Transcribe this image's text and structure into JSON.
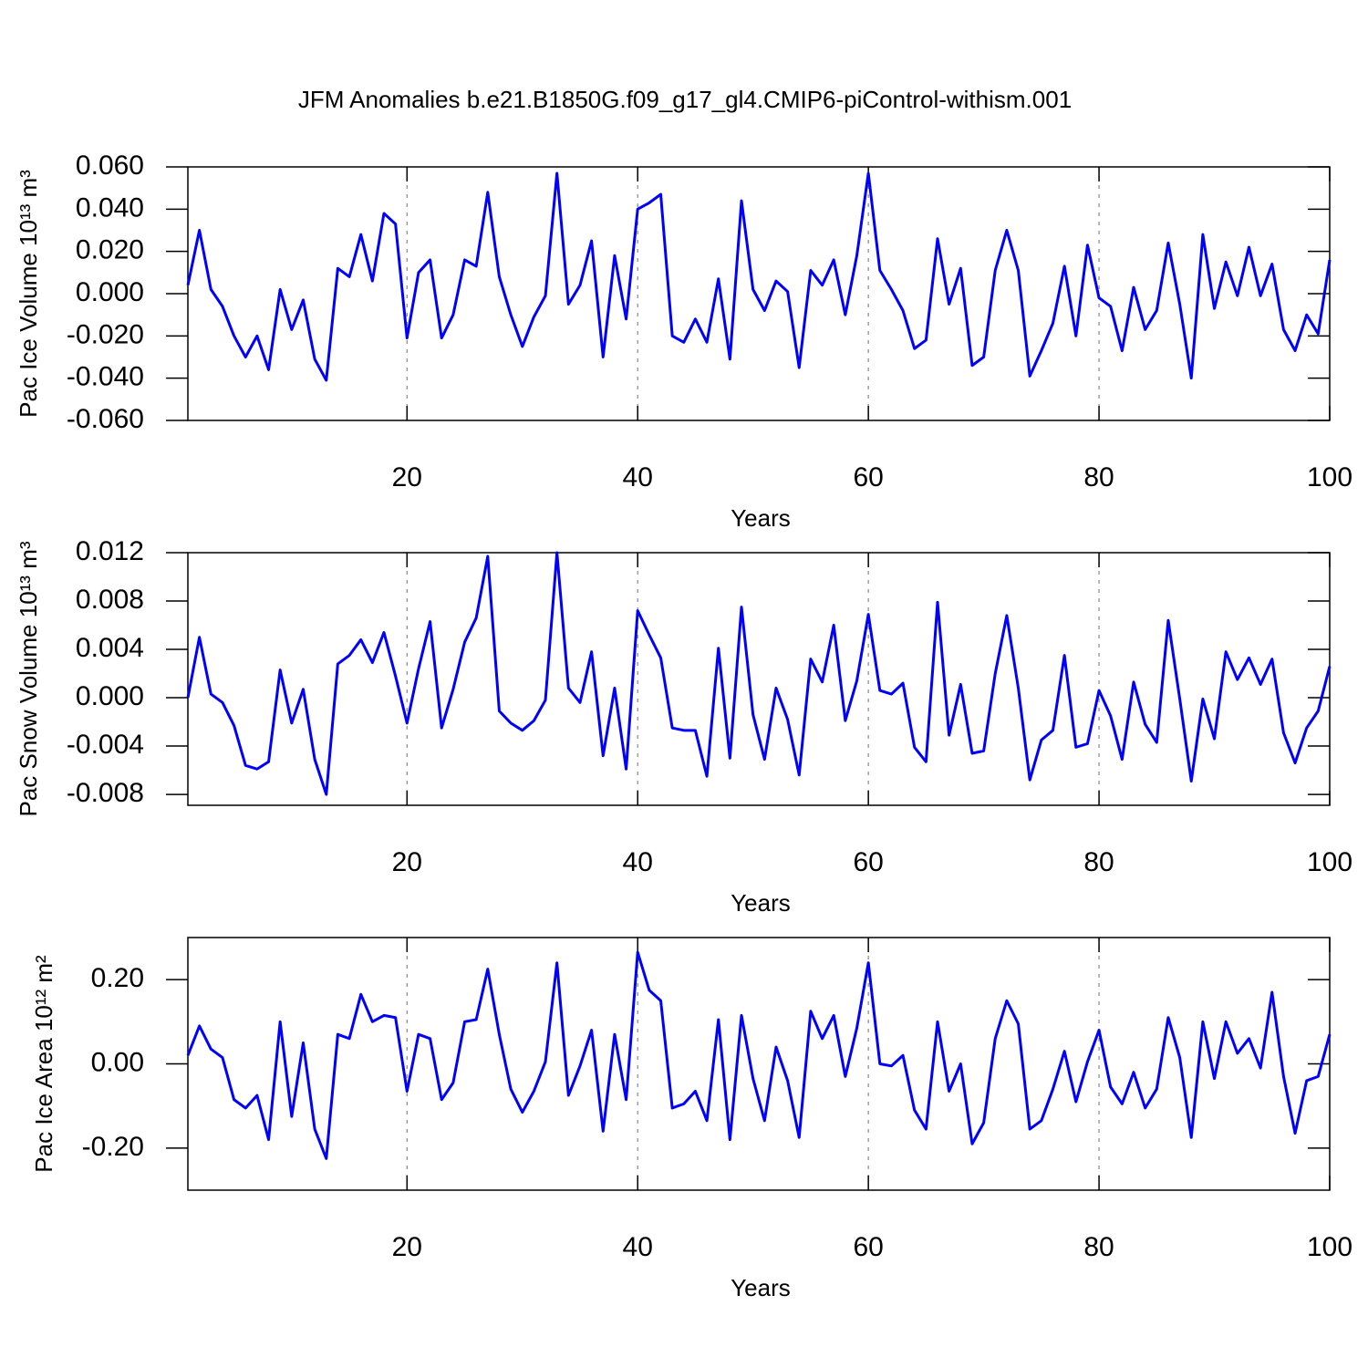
{
  "title": "JFM Anomalies b.e21.B1850G.f09_g17_gl4.CMIP6-piControl-withism.001",
  "chart_data": [
    {
      "type": "line",
      "ylabel": "Pac Ice Volume 10¹³ m³",
      "xlabel": "Years",
      "color": "#0000ff",
      "xgrid": true,
      "xlim": [
        1,
        100
      ],
      "xticks": [
        20,
        40,
        60,
        80,
        100
      ],
      "ylim": [
        -0.06,
        0.06
      ],
      "yticks": [
        {
          "value": -0.06,
          "label": "-0.060"
        },
        {
          "value": -0.04,
          "label": "-0.040"
        },
        {
          "value": -0.02,
          "label": "-0.020"
        },
        {
          "value": 0,
          "label": "0.000"
        },
        {
          "value": 0.02,
          "label": "0.020"
        },
        {
          "value": 0.04,
          "label": "0.040"
        },
        {
          "value": 0.06,
          "label": "0.060"
        }
      ],
      "x": [
        1,
        2,
        3,
        4,
        5,
        6,
        7,
        8,
        9,
        10,
        11,
        12,
        13,
        14,
        15,
        16,
        17,
        18,
        19,
        20,
        21,
        22,
        23,
        24,
        25,
        26,
        27,
        28,
        29,
        30,
        31,
        32,
        33,
        34,
        35,
        36,
        37,
        38,
        39,
        40,
        41,
        42,
        43,
        44,
        45,
        46,
        47,
        48,
        49,
        50,
        51,
        52,
        53,
        54,
        55,
        56,
        57,
        58,
        59,
        60,
        61,
        62,
        63,
        64,
        65,
        66,
        67,
        68,
        69,
        70,
        71,
        72,
        73,
        74,
        75,
        76,
        77,
        78,
        79,
        80,
        81,
        82,
        83,
        84,
        85,
        86,
        87,
        88,
        89,
        90,
        91,
        92,
        93,
        94,
        95,
        96,
        97,
        98,
        99,
        100
      ],
      "values": [
        0.004,
        0.03,
        0.002,
        -0.006,
        -0.02,
        -0.03,
        -0.02,
        -0.036,
        0.002,
        -0.017,
        -0.003,
        -0.031,
        -0.041,
        0.012,
        0.008,
        0.028,
        0.006,
        0.038,
        0.033,
        -0.021,
        0.01,
        0.016,
        -0.021,
        -0.01,
        0.016,
        0.013,
        0.048,
        0.008,
        -0.01,
        -0.025,
        -0.011,
        -0.001,
        0.057,
        -0.005,
        0.004,
        0.025,
        -0.03,
        0.018,
        -0.012,
        0.04,
        0.043,
        0.047,
        -0.02,
        -0.023,
        -0.012,
        -0.023,
        0.007,
        -0.031,
        0.044,
        0.002,
        -0.008,
        0.006,
        0.001,
        -0.035,
        0.011,
        0.004,
        0.016,
        -0.01,
        0.018,
        0.057,
        0.011,
        0.002,
        -0.008,
        -0.026,
        -0.022,
        0.026,
        -0.005,
        0.012,
        -0.034,
        -0.03,
        0.011,
        0.03,
        0.011,
        -0.039,
        -0.027,
        -0.014,
        0.013,
        -0.02,
        0.023,
        -0.002,
        -0.006,
        -0.027,
        0.003,
        -0.017,
        -0.008,
        0.024,
        -0.005,
        -0.04,
        0.028,
        -0.007,
        0.015,
        -0.001,
        0.022,
        -0.001,
        0.014,
        -0.017,
        -0.027,
        -0.01,
        -0.019,
        0.016
      ]
    },
    {
      "type": "line",
      "ylabel": "Pac Snow Volume 10¹³ m³",
      "xlabel": "Years",
      "color": "#0000ff",
      "xgrid": true,
      "xlim": [
        1,
        100
      ],
      "xticks": [
        20,
        40,
        60,
        80,
        100
      ],
      "ylim": [
        -0.0089,
        0.012
      ],
      "yticks": [
        {
          "value": -0.008,
          "label": "-0.008"
        },
        {
          "value": -0.004,
          "label": "-0.004"
        },
        {
          "value": 0,
          "label": "0.000"
        },
        {
          "value": 0.004,
          "label": "0.004"
        },
        {
          "value": 0.008,
          "label": "0.008"
        },
        {
          "value": 0.012,
          "label": "0.012"
        }
      ],
      "x": [
        1,
        2,
        3,
        4,
        5,
        6,
        7,
        8,
        9,
        10,
        11,
        12,
        13,
        14,
        15,
        16,
        17,
        18,
        19,
        20,
        21,
        22,
        23,
        24,
        25,
        26,
        27,
        28,
        29,
        30,
        31,
        32,
        33,
        34,
        35,
        36,
        37,
        38,
        39,
        40,
        41,
        42,
        43,
        44,
        45,
        46,
        47,
        48,
        49,
        50,
        51,
        52,
        53,
        54,
        55,
        56,
        57,
        58,
        59,
        60,
        61,
        62,
        63,
        64,
        65,
        66,
        67,
        68,
        69,
        70,
        71,
        72,
        73,
        74,
        75,
        76,
        77,
        78,
        79,
        80,
        81,
        82,
        83,
        84,
        85,
        86,
        87,
        88,
        89,
        90,
        91,
        92,
        93,
        94,
        95,
        96,
        97,
        98,
        99,
        100
      ],
      "values": [
        0.0,
        0.005,
        0.0003,
        -0.0004,
        -0.0023,
        -0.0056,
        -0.0059,
        -0.0053,
        0.0023,
        -0.0021,
        0.0007,
        -0.0051,
        -0.008,
        0.0028,
        0.0035,
        0.0048,
        0.0029,
        0.0054,
        0.0018,
        -0.0021,
        0.0024,
        0.0063,
        -0.0025,
        0.0007,
        0.0046,
        0.0066,
        0.0117,
        -0.0011,
        -0.0021,
        -0.0027,
        -0.0019,
        -0.0002,
        0.012,
        0.0008,
        -0.0004,
        0.0038,
        -0.0048,
        0.0008,
        -0.0059,
        0.0072,
        0.0052,
        0.0033,
        -0.0025,
        -0.0027,
        -0.0027,
        -0.0065,
        0.0041,
        -0.005,
        0.0075,
        -0.0014,
        -0.0051,
        0.0008,
        -0.0018,
        -0.0064,
        0.0032,
        0.0013,
        0.006,
        -0.0019,
        0.0014,
        0.0069,
        0.0006,
        0.0003,
        0.0012,
        -0.0041,
        -0.0053,
        0.0079,
        -0.0031,
        0.0011,
        -0.0046,
        -0.0044,
        0.002,
        0.0068,
        0.0008,
        -0.0068,
        -0.0035,
        -0.0027,
        0.0035,
        -0.0041,
        -0.0038,
        0.0006,
        -0.0015,
        -0.0051,
        0.0013,
        -0.0022,
        -0.0037,
        0.0064,
        -0.0001,
        -0.0069,
        -0.0001,
        -0.0034,
        0.0038,
        0.0015,
        0.0033,
        0.0011,
        0.0032,
        -0.0029,
        -0.0054,
        -0.0025,
        -0.0011,
        0.0026
      ]
    },
    {
      "type": "line",
      "ylabel": "Pac Ice Area 10¹² m²",
      "xlabel": "Years",
      "color": "#0000ff",
      "xgrid": true,
      "xlim": [
        1,
        100
      ],
      "xticks": [
        20,
        40,
        60,
        80,
        100
      ],
      "ylim": [
        -0.3,
        0.3
      ],
      "yticks": [
        {
          "value": -0.2,
          "label": "-0.20"
        },
        {
          "value": 0,
          "label": "0.00"
        },
        {
          "value": 0.2,
          "label": "0.20"
        }
      ],
      "x": [
        1,
        2,
        3,
        4,
        5,
        6,
        7,
        8,
        9,
        10,
        11,
        12,
        13,
        14,
        15,
        16,
        17,
        18,
        19,
        20,
        21,
        22,
        23,
        24,
        25,
        26,
        27,
        28,
        29,
        30,
        31,
        32,
        33,
        34,
        35,
        36,
        37,
        38,
        39,
        40,
        41,
        42,
        43,
        44,
        45,
        46,
        47,
        48,
        49,
        50,
        51,
        52,
        53,
        54,
        55,
        56,
        57,
        58,
        59,
        60,
        61,
        62,
        63,
        64,
        65,
        66,
        67,
        68,
        69,
        70,
        71,
        72,
        73,
        74,
        75,
        76,
        77,
        78,
        79,
        80,
        81,
        82,
        83,
        84,
        85,
        86,
        87,
        88,
        89,
        90,
        91,
        92,
        93,
        94,
        95,
        96,
        97,
        98,
        99,
        100
      ],
      "values": [
        0.02,
        0.09,
        0.035,
        0.015,
        -0.085,
        -0.105,
        -0.075,
        -0.18,
        0.1,
        -0.125,
        0.05,
        -0.155,
        -0.225,
        0.07,
        0.06,
        0.165,
        0.1,
        0.115,
        0.11,
        -0.065,
        0.07,
        0.06,
        -0.085,
        -0.045,
        0.1,
        0.105,
        0.225,
        0.07,
        -0.06,
        -0.115,
        -0.065,
        0.005,
        0.24,
        -0.075,
        -0.005,
        0.08,
        -0.16,
        0.07,
        -0.085,
        0.265,
        0.175,
        0.15,
        -0.105,
        -0.095,
        -0.065,
        -0.135,
        0.105,
        -0.18,
        0.115,
        -0.035,
        -0.135,
        0.04,
        -0.04,
        -0.175,
        0.125,
        0.06,
        0.115,
        -0.03,
        0.085,
        0.24,
        0.0,
        -0.005,
        0.02,
        -0.11,
        -0.155,
        0.1,
        -0.065,
        0.0,
        -0.19,
        -0.14,
        0.06,
        0.15,
        0.095,
        -0.155,
        -0.135,
        -0.06,
        0.03,
        -0.09,
        0.005,
        0.08,
        -0.055,
        -0.095,
        -0.02,
        -0.105,
        -0.06,
        0.11,
        0.015,
        -0.175,
        0.1,
        -0.035,
        0.1,
        0.025,
        0.06,
        -0.01,
        0.17,
        -0.03,
        -0.165,
        -0.04,
        -0.03,
        0.07
      ]
    }
  ]
}
